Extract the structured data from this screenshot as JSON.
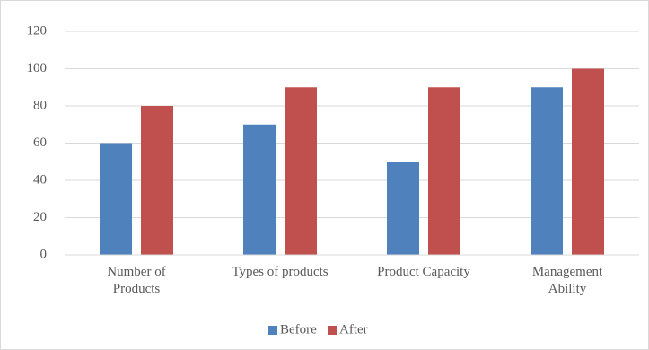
{
  "chart_data": {
    "type": "bar",
    "categories": [
      "Number of Products",
      "Types of products",
      "Product Capacity",
      "Management Ability"
    ],
    "series": [
      {
        "name": "Before",
        "color": "#4f81bd",
        "values": [
          60,
          70,
          50,
          90
        ]
      },
      {
        "name": "After",
        "color": "#c0504d",
        "values": [
          80,
          90,
          90,
          100
        ]
      }
    ],
    "ylim": [
      0,
      120
    ],
    "yticks": [
      0,
      20,
      40,
      60,
      80,
      100,
      120
    ],
    "grid": true,
    "legend": "bottom"
  }
}
